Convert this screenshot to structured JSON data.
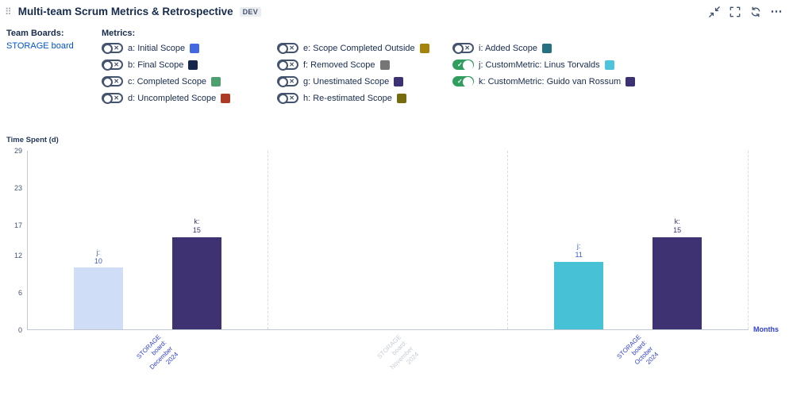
{
  "header": {
    "title": "Multi-team Scrum Metrics & Retrospective",
    "env_badge": "DEV"
  },
  "icons": {
    "drag": "⠿",
    "more": "⋯"
  },
  "team_boards": {
    "label": "Team Boards:",
    "board_link": "STORAGE board"
  },
  "metrics": {
    "label": "Metrics:",
    "items": [
      {
        "label": "a: Initial Scope",
        "color": "#4468e2",
        "on": false
      },
      {
        "label": "b: Final Scope",
        "color": "#15254c",
        "on": false
      },
      {
        "label": "c: Completed Scope",
        "color": "#4f9e6f",
        "on": false
      },
      {
        "label": "d: Uncompleted Scope",
        "color": "#ab3b25",
        "on": false
      },
      {
        "label": "e: Scope Completed Outside",
        "color": "#a3830a",
        "on": false
      },
      {
        "label": "f: Removed Scope",
        "color": "#767676",
        "on": false
      },
      {
        "label": "g: Unestimated Scope",
        "color": "#3c3173",
        "on": false
      },
      {
        "label": "h: Re-estimated Scope",
        "color": "#756c10",
        "on": false
      },
      {
        "label": "i: Added Scope",
        "color": "#257181",
        "on": false
      },
      {
        "label": "j: CustomMetric: Linus Torvalds",
        "color": "#4fc3d9",
        "on": true
      },
      {
        "label": "k: CustomMetric: Guido van Rossum",
        "color": "#3c3173",
        "on": true
      }
    ]
  },
  "chart_data": {
    "type": "bar",
    "title": "",
    "ylabel": "Time Spent (d)",
    "xlabel": "Months",
    "ylim": [
      0,
      29
    ],
    "yticks": [
      0,
      6,
      12,
      17,
      23,
      29
    ],
    "grid": "vertical-dashed",
    "categories": [
      "STORAGE board: December 2024",
      "STORAGE board: November 2024",
      "STORAGE board: October 2024"
    ],
    "series": [
      {
        "name": "j",
        "values": [
          10,
          null,
          11
        ]
      },
      {
        "name": "k",
        "values": [
          15,
          null,
          15
        ]
      }
    ],
    "groups": [
      {
        "label_lines": [
          "STORAGE",
          "board:",
          "December",
          "2024"
        ],
        "label_color": "#2d3fd2",
        "bars": [
          {
            "name": "j",
            "value": 10,
            "color": "#cfddf6",
            "label_color": "#3c5cd0"
          },
          {
            "name": "k",
            "value": 15,
            "color": "#3e3273",
            "label_color": "#3e3273"
          }
        ]
      },
      {
        "label_lines": [
          "STORAGE",
          "board:",
          "November",
          "2024"
        ],
        "label_color": "#c7ccd5",
        "bars": []
      },
      {
        "label_lines": [
          "STORAGE",
          "board:",
          "October",
          "2024"
        ],
        "label_color": "#2d3fd2",
        "bars": [
          {
            "name": "j",
            "value": 11,
            "color": "#47c1d5",
            "label_color": "#3c5cd0"
          },
          {
            "name": "k",
            "value": 15,
            "color": "#3e3273",
            "label_color": "#3e3273"
          }
        ]
      }
    ]
  }
}
